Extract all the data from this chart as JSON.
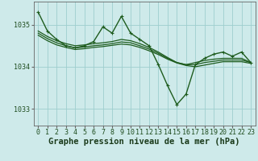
{
  "background_color": "#ceeaea",
  "grid_color": "#9ecece",
  "line_color": "#1e5c1e",
  "marker_color": "#1e5c1e",
  "xlabel": "Graphe pression niveau de la mer (hPa)",
  "xlabel_fontsize": 7.5,
  "tick_fontsize": 6,
  "xlim": [
    -0.5,
    23.5
  ],
  "ylim": [
    1032.6,
    1035.55
  ],
  "yticks": [
    1033,
    1034,
    1035
  ],
  "xticks": [
    0,
    1,
    2,
    3,
    4,
    5,
    6,
    7,
    8,
    9,
    10,
    11,
    12,
    13,
    14,
    15,
    16,
    17,
    18,
    19,
    20,
    21,
    22,
    23
  ],
  "series_main": [
    1035.3,
    1034.85,
    1034.65,
    1034.5,
    1034.45,
    1034.5,
    1034.6,
    1034.95,
    1034.8,
    1035.2,
    1034.8,
    1034.65,
    1034.5,
    1034.05,
    1033.55,
    1033.1,
    1033.35,
    1034.05,
    1034.2,
    1034.3,
    1034.35,
    1034.25,
    1034.35,
    1034.1
  ],
  "series_smooth": [
    [
      1034.85,
      1034.72,
      1034.62,
      1034.55,
      1034.5,
      1034.52,
      1034.55,
      1034.57,
      1034.6,
      1034.65,
      1034.62,
      1034.55,
      1034.46,
      1034.35,
      1034.22,
      1034.1,
      1034.05,
      1034.1,
      1034.15,
      1034.18,
      1034.2,
      1034.2,
      1034.2,
      1034.1
    ],
    [
      1034.8,
      1034.67,
      1034.57,
      1034.5,
      1034.45,
      1034.47,
      1034.5,
      1034.52,
      1034.55,
      1034.59,
      1034.57,
      1034.5,
      1034.42,
      1034.32,
      1034.2,
      1034.1,
      1034.05,
      1034.05,
      1034.1,
      1034.13,
      1034.16,
      1034.16,
      1034.16,
      1034.1
    ],
    [
      1034.75,
      1034.62,
      1034.52,
      1034.46,
      1034.41,
      1034.43,
      1034.46,
      1034.48,
      1034.51,
      1034.54,
      1034.52,
      1034.46,
      1034.38,
      1034.29,
      1034.18,
      1034.09,
      1034.03,
      1034.0,
      1034.04,
      1034.08,
      1034.12,
      1034.12,
      1034.12,
      1034.08
    ]
  ]
}
